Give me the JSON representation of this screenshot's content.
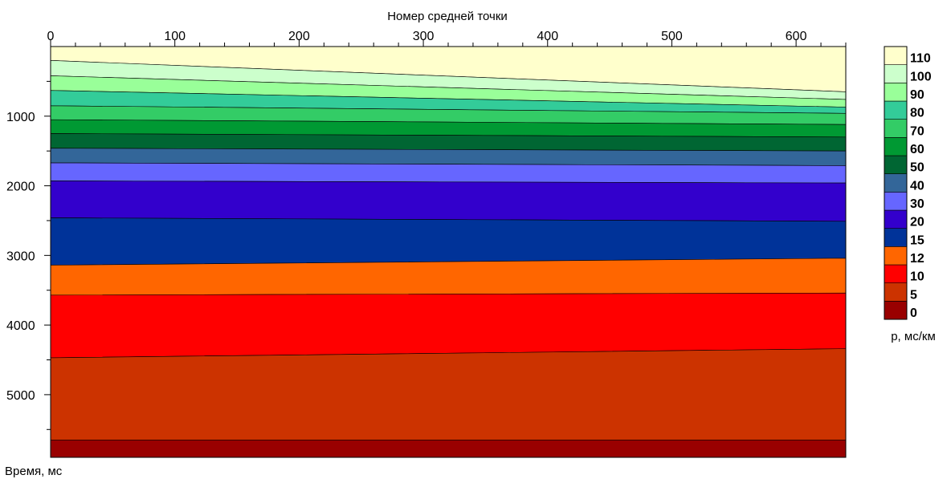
{
  "chart_data": {
    "type": "heatmap",
    "xlabel": "Номер средней точки",
    "ylabel": "Время, мс",
    "xlim": [
      0,
      640
    ],
    "ylim": [
      0,
      5900
    ],
    "xticks_major": [
      0,
      100,
      200,
      300,
      400,
      500,
      600
    ],
    "xticks_minor_step": 20,
    "yticks_major": [
      1000,
      2000,
      3000,
      4000,
      5000
    ],
    "yticks_minor_step": 500,
    "colorbar": {
      "label": "p, мс/км",
      "levels": [
        "0",
        "5",
        "10",
        "12",
        "15",
        "20",
        "30",
        "40",
        "50",
        "60",
        "70",
        "80",
        "90",
        "100",
        "110"
      ],
      "colors": [
        "#990000",
        "#cc3300",
        "#ff0000",
        "#ff6600",
        "#003399",
        "#3300cc",
        "#6666ff",
        "#336699",
        "#006633",
        "#009933",
        "#33cc66",
        "#33cc99",
        "#99ff99",
        "#ccffcc",
        "#ffffcc"
      ]
    },
    "bands": [
      {
        "value": "110",
        "color": "#ffffcc",
        "top": [
          0,
          0
        ],
        "bottom": [
          200,
          650
        ]
      },
      {
        "value": "100",
        "color": "#ccffcc",
        "top": [
          200,
          650
        ],
        "bottom": [
          420,
          760
        ]
      },
      {
        "value": "90",
        "color": "#99ff99",
        "top": [
          420,
          760
        ],
        "bottom": [
          630,
          870
        ]
      },
      {
        "value": "80",
        "color": "#33cc99",
        "top": [
          630,
          870
        ],
        "bottom": [
          850,
          960
        ]
      },
      {
        "value": "70",
        "color": "#33cc66",
        "top": [
          850,
          960
        ],
        "bottom": [
          1050,
          1120
        ]
      },
      {
        "value": "60",
        "color": "#009933",
        "top": [
          1050,
          1120
        ],
        "bottom": [
          1250,
          1300
        ]
      },
      {
        "value": "50",
        "color": "#006633",
        "top": [
          1250,
          1300
        ],
        "bottom": [
          1460,
          1500
        ]
      },
      {
        "value": "40",
        "color": "#336699",
        "top": [
          1460,
          1500
        ],
        "bottom": [
          1670,
          1710
        ]
      },
      {
        "value": "30",
        "color": "#6666ff",
        "top": [
          1670,
          1710
        ],
        "bottom": [
          1930,
          1960
        ]
      },
      {
        "value": "20",
        "color": "#3300cc",
        "top": [
          1930,
          1960
        ],
        "bottom": [
          2460,
          2510
        ]
      },
      {
        "value": "15",
        "color": "#003399",
        "top": [
          2460,
          2510
        ],
        "bottom": [
          3140,
          3040
        ]
      },
      {
        "value": "12",
        "color": "#ff6600",
        "top": [
          3140,
          3040
        ],
        "bottom": [
          3570,
          3540
        ]
      },
      {
        "value": "10",
        "color": "#ff0000",
        "top": [
          3570,
          3540
        ],
        "bottom": [
          4470,
          4340
        ]
      },
      {
        "value": "5",
        "color": "#cc3300",
        "top": [
          4470,
          4340
        ],
        "bottom": [
          5650,
          5650
        ]
      },
      {
        "value": "0",
        "color": "#990000",
        "top": [
          5650,
          5650
        ],
        "bottom": [
          5900,
          5900
        ]
      }
    ]
  }
}
